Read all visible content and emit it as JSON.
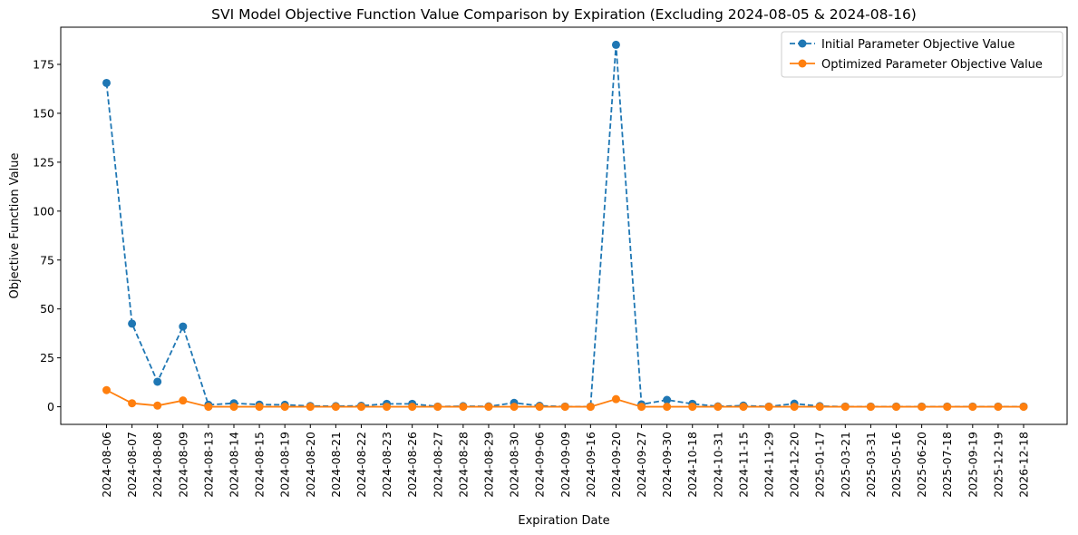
{
  "chart_data": {
    "type": "line",
    "title": "SVI Model Objective Function Value Comparison by Expiration (Excluding 2024-08-05 & 2024-08-16)",
    "xlabel": "Expiration Date",
    "ylabel": "Objective Function Value",
    "ylim": [
      -9,
      194
    ],
    "yticks": [
      "0",
      "25",
      "50",
      "75",
      "100",
      "125",
      "150",
      "175"
    ],
    "grid": false,
    "legend_position": "top-right",
    "categories": [
      "2024-08-06",
      "2024-08-07",
      "2024-08-08",
      "2024-08-09",
      "2024-08-13",
      "2024-08-14",
      "2024-08-15",
      "2024-08-19",
      "2024-08-20",
      "2024-08-21",
      "2024-08-22",
      "2024-08-23",
      "2024-08-26",
      "2024-08-27",
      "2024-08-28",
      "2024-08-29",
      "2024-08-30",
      "2024-09-06",
      "2024-09-09",
      "2024-09-16",
      "2024-09-20",
      "2024-09-27",
      "2024-09-30",
      "2024-10-18",
      "2024-10-31",
      "2024-11-15",
      "2024-11-29",
      "2024-12-20",
      "2025-01-17",
      "2025-03-21",
      "2025-03-31",
      "2025-05-16",
      "2025-06-20",
      "2025-07-18",
      "2025-09-19",
      "2025-12-19",
      "2026-12-18"
    ],
    "series": [
      {
        "name": "Initial Parameter Objective Value",
        "color": "#1f77b4",
        "line_style": "dashed",
        "marker": "circle",
        "values": [
          165.5,
          42.5,
          12.8,
          41.0,
          1.0,
          1.8,
          1.1,
          1.0,
          0.4,
          0.3,
          0.5,
          1.5,
          1.5,
          0.1,
          0.3,
          0.2,
          2.0,
          0.5,
          0.1,
          0.1,
          185.0,
          1.2,
          3.5,
          1.5,
          0.2,
          0.6,
          0.1,
          1.6,
          0.3,
          0.1,
          0.1,
          0.1,
          0.1,
          0.1,
          0.1,
          0.1,
          0.1
        ]
      },
      {
        "name": "Optimized Parameter Objective Value",
        "color": "#ff7f0e",
        "line_style": "solid",
        "marker": "circle",
        "values": [
          8.5,
          1.8,
          0.6,
          3.2,
          0.0,
          0.0,
          0.0,
          0.0,
          0.0,
          0.0,
          0.0,
          0.0,
          0.0,
          0.0,
          0.0,
          0.0,
          0.0,
          0.0,
          0.0,
          0.0,
          3.9,
          0.0,
          0.0,
          0.0,
          0.0,
          0.0,
          0.0,
          0.0,
          0.0,
          0.0,
          0.0,
          0.0,
          0.0,
          0.0,
          0.0,
          0.0,
          0.0
        ]
      }
    ]
  }
}
